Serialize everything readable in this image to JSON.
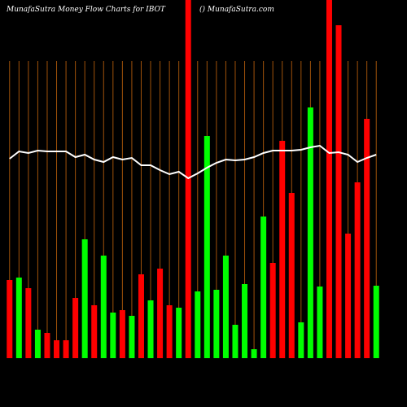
{
  "chart_data": {
    "type": "bar-line",
    "title": "MunafaSutra  Money Flow  Charts for IBOT",
    "subtitle": "() MunafaSutra.com",
    "ylim": [
      0,
      440
    ],
    "series": [
      {
        "type": "bar",
        "values": [
          96,
          99,
          86,
          35,
          31,
          22,
          22,
          74,
          146,
          65,
          126,
          56,
          59,
          52,
          103,
          71,
          110,
          65,
          62,
          440,
          82,
          273,
          84,
          126,
          41,
          91,
          11,
          174,
          117,
          267,
          203,
          44,
          308,
          88,
          440,
          409,
          153,
          216,
          294,
          89
        ],
        "colors": [
          "#ff0000",
          "#00ff00",
          "#ff0000",
          "#00ff00",
          "#ff0000",
          "#ff0000",
          "#ff0000",
          "#ff0000",
          "#00ff00",
          "#ff0000",
          "#00ff00",
          "#00ff00",
          "#ff0000",
          "#00ff00",
          "#ff0000",
          "#00ff00",
          "#ff0000",
          "#ff0000",
          "#00ff00",
          "#ff0000",
          "#00ff00",
          "#00ff00",
          "#00ff00",
          "#00ff00",
          "#00ff00",
          "#00ff00",
          "#00ff00",
          "#00ff00",
          "#ff0000",
          "#ff0000",
          "#ff0000",
          "#00ff00",
          "#00ff00",
          "#00ff00",
          "#ff0000",
          "#ff0000",
          "#ff0000",
          "#ff0000",
          "#ff0000",
          "#00ff00"
        ]
      },
      {
        "type": "line",
        "color": "#ffffff",
        "values": [
          245,
          254,
          252,
          255,
          254,
          254,
          254,
          247,
          250,
          244,
          241,
          247,
          244,
          246,
          237,
          237,
          231,
          226,
          229,
          221,
          227,
          234,
          240,
          244,
          243,
          244,
          247,
          252,
          255,
          255,
          255,
          256,
          259,
          261,
          252,
          253,
          250,
          241,
          246,
          250
        ]
      }
    ],
    "grid_color": "#a0520a"
  }
}
